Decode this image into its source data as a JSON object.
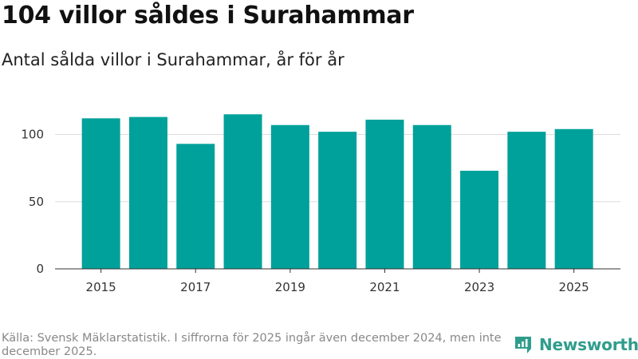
{
  "header": {
    "title": "104 villor såldes i Surahammar",
    "subtitle": "Antal sålda villor i Surahammar, år för år"
  },
  "chart_data": {
    "type": "bar",
    "title": "104 villor såldes i Surahammar",
    "subtitle": "Antal sålda villor i Surahammar, år för år",
    "xlabel": "",
    "ylabel": "",
    "categories": [
      "2015",
      "2016",
      "2017",
      "2018",
      "2019",
      "2020",
      "2021",
      "2022",
      "2023",
      "2024",
      "2025"
    ],
    "values": [
      112,
      113,
      93,
      115,
      107,
      102,
      111,
      107,
      73,
      102,
      104
    ],
    "ylim": [
      0,
      130
    ],
    "yticks": [
      0,
      50,
      100
    ],
    "ytick_labels": [
      "0",
      "50",
      "100"
    ],
    "xtick_labels": [
      "2015",
      "2017",
      "2019",
      "2021",
      "2023",
      "2025"
    ],
    "xtick_categories": [
      "2015",
      "2017",
      "2019",
      "2021",
      "2023",
      "2025"
    ],
    "grid": true,
    "legend": "none",
    "bar_color": "#00a19a"
  },
  "footer": {
    "source": "Källa: Svensk Mäklarstatistik. I siffrorna för 2025 ingår även december 2024, men inte december 2025.",
    "brand": "Newsworthy",
    "brand_icon": "newsworthy-logo-icon",
    "brand_color": "#2f9d8c"
  }
}
